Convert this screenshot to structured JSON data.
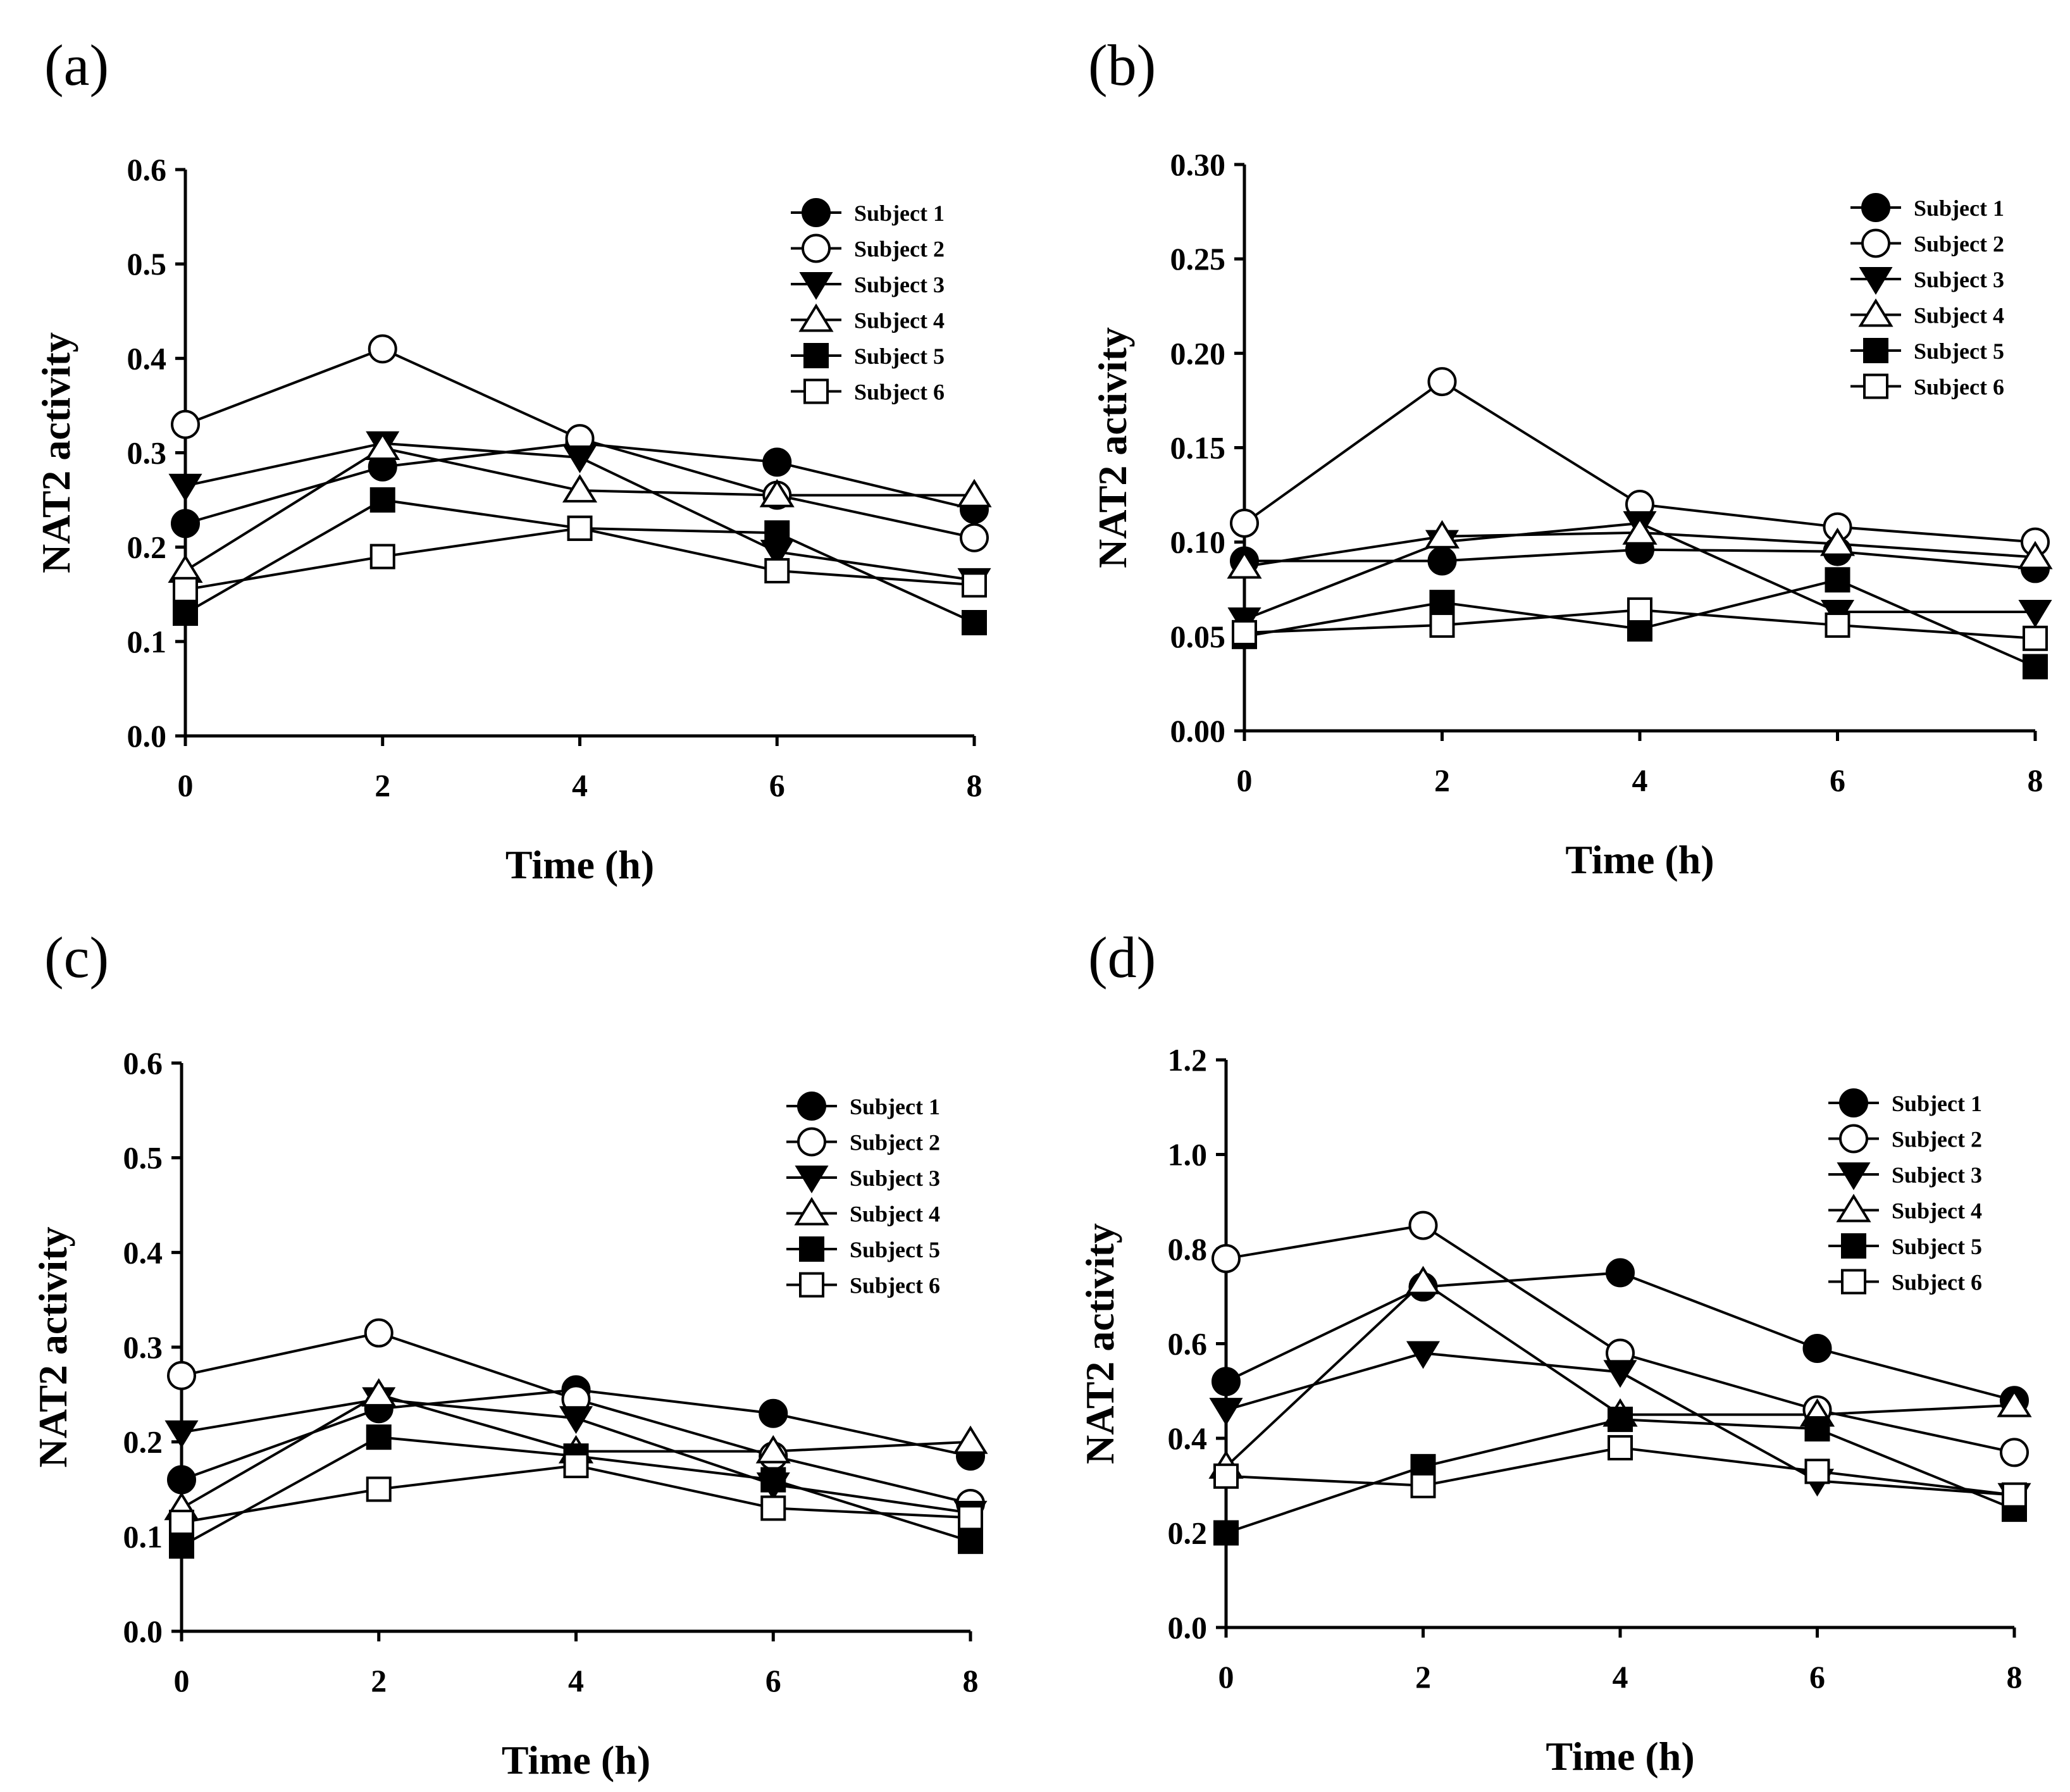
{
  "figure": {
    "panels": [
      {
        "label": "(a)"
      },
      {
        "label": "(b)"
      },
      {
        "label": "(c)"
      },
      {
        "label": "(d)"
      }
    ]
  },
  "chart_data": [
    {
      "type": "line",
      "panel_label": "(a)",
      "xlabel": "Time (h)",
      "ylabel": "NAT2 activity",
      "x": [
        0,
        2,
        4,
        6,
        8
      ],
      "xlim": [
        0,
        8
      ],
      "ylim": [
        0,
        0.6
      ],
      "yticks": [
        "0.0",
        "0.1",
        "0.2",
        "0.3",
        "0.4",
        "0.5",
        "0.6"
      ],
      "xticks": [
        "0",
        "2",
        "4",
        "6",
        "8"
      ],
      "grid": false,
      "legend_position": "top-right",
      "series": [
        {
          "name": "Subject 1",
          "marker": "circle-filled",
          "values": [
            0.225,
            0.285,
            0.31,
            0.29,
            0.24
          ]
        },
        {
          "name": "Subject 2",
          "marker": "circle-open",
          "values": [
            0.33,
            0.41,
            0.315,
            0.255,
            0.21
          ]
        },
        {
          "name": "Subject 3",
          "marker": "triangle-down-filled",
          "values": [
            0.265,
            0.31,
            0.295,
            0.195,
            0.165
          ]
        },
        {
          "name": "Subject 4",
          "marker": "triangle-up-open",
          "values": [
            0.175,
            0.305,
            0.26,
            0.255,
            0.255
          ]
        },
        {
          "name": "Subject 5",
          "marker": "square-filled",
          "values": [
            0.13,
            0.25,
            0.22,
            0.215,
            0.12
          ]
        },
        {
          "name": "Subject 6",
          "marker": "square-open",
          "values": [
            0.155,
            0.19,
            0.22,
            0.175,
            0.16
          ]
        }
      ]
    },
    {
      "type": "line",
      "panel_label": "(b)",
      "xlabel": "Time (h)",
      "ylabel": "NAT2 activity",
      "x": [
        0,
        2,
        4,
        6,
        8
      ],
      "xlim": [
        0,
        8
      ],
      "ylim": [
        0,
        0.3
      ],
      "yticks": [
        "0.00",
        "0.05",
        "0.10",
        "0.15",
        "0.20",
        "0.25",
        "0.30"
      ],
      "xticks": [
        "0",
        "2",
        "4",
        "6",
        "8"
      ],
      "grid": false,
      "legend_position": "top-right",
      "series": [
        {
          "name": "Subject 1",
          "marker": "circle-filled",
          "values": [
            0.09,
            0.09,
            0.096,
            0.095,
            0.086
          ]
        },
        {
          "name": "Subject 2",
          "marker": "circle-open",
          "values": [
            0.11,
            0.185,
            0.12,
            0.108,
            0.1
          ]
        },
        {
          "name": "Subject 3",
          "marker": "triangle-down-filled",
          "values": [
            0.059,
            0.1,
            0.11,
            0.063,
            0.063
          ]
        },
        {
          "name": "Subject 4",
          "marker": "triangle-up-open",
          "values": [
            0.087,
            0.103,
            0.105,
            0.099,
            0.092
          ]
        },
        {
          "name": "Subject 5",
          "marker": "square-filled",
          "values": [
            0.05,
            0.068,
            0.054,
            0.08,
            0.034
          ]
        },
        {
          "name": "Subject 6",
          "marker": "square-open",
          "values": [
            0.052,
            0.056,
            0.064,
            0.056,
            0.049
          ]
        }
      ]
    },
    {
      "type": "line",
      "panel_label": "(c)",
      "xlabel": "Time (h)",
      "ylabel": "NAT2 activity",
      "x": [
        0,
        2,
        4,
        6,
        8
      ],
      "xlim": [
        0,
        8
      ],
      "ylim": [
        0,
        0.6
      ],
      "yticks": [
        "0.0",
        "0.1",
        "0.2",
        "0.3",
        "0.4",
        "0.5",
        "0.6"
      ],
      "xticks": [
        "0",
        "2",
        "4",
        "6",
        "8"
      ],
      "grid": false,
      "legend_position": "top-right",
      "series": [
        {
          "name": "Subject 1",
          "marker": "circle-filled",
          "values": [
            0.16,
            0.235,
            0.255,
            0.23,
            0.185
          ]
        },
        {
          "name": "Subject 2",
          "marker": "circle-open",
          "values": [
            0.27,
            0.315,
            0.245,
            0.185,
            0.135
          ]
        },
        {
          "name": "Subject 3",
          "marker": "triangle-down-filled",
          "values": [
            0.21,
            0.245,
            0.225,
            0.155,
            0.125
          ]
        },
        {
          "name": "Subject 4",
          "marker": "triangle-up-open",
          "values": [
            0.13,
            0.25,
            0.19,
            0.19,
            0.2
          ]
        },
        {
          "name": "Subject 5",
          "marker": "square-filled",
          "values": [
            0.09,
            0.205,
            0.185,
            0.16,
            0.095
          ]
        },
        {
          "name": "Subject 6",
          "marker": "square-open",
          "values": [
            0.115,
            0.15,
            0.175,
            0.13,
            0.12
          ]
        }
      ]
    },
    {
      "type": "line",
      "panel_label": "(d)",
      "xlabel": "Time (h)",
      "ylabel": "NAT2 activity",
      "x": [
        0,
        2,
        4,
        6,
        8
      ],
      "xlim": [
        0,
        8
      ],
      "ylim": [
        0,
        1.2
      ],
      "yticks": [
        "0.0",
        "0.2",
        "0.4",
        "0.6",
        "0.8",
        "1.0",
        "1.2"
      ],
      "xticks": [
        "0",
        "2",
        "4",
        "6",
        "8"
      ],
      "grid": false,
      "legend_position": "top-right",
      "series": [
        {
          "name": "Subject 1",
          "marker": "circle-filled",
          "values": [
            0.52,
            0.72,
            0.75,
            0.59,
            0.48
          ]
        },
        {
          "name": "Subject 2",
          "marker": "circle-open",
          "values": [
            0.78,
            0.85,
            0.58,
            0.46,
            0.37
          ]
        },
        {
          "name": "Subject 3",
          "marker": "triangle-down-filled",
          "values": [
            0.46,
            0.58,
            0.54,
            0.31,
            0.28
          ]
        },
        {
          "name": "Subject 4",
          "marker": "triangle-up-open",
          "values": [
            0.34,
            0.73,
            0.45,
            0.45,
            0.47
          ]
        },
        {
          "name": "Subject 5",
          "marker": "square-filled",
          "values": [
            0.2,
            0.34,
            0.44,
            0.42,
            0.25
          ]
        },
        {
          "name": "Subject 6",
          "marker": "square-open",
          "values": [
            0.32,
            0.3,
            0.38,
            0.33,
            0.28
          ]
        }
      ]
    }
  ]
}
